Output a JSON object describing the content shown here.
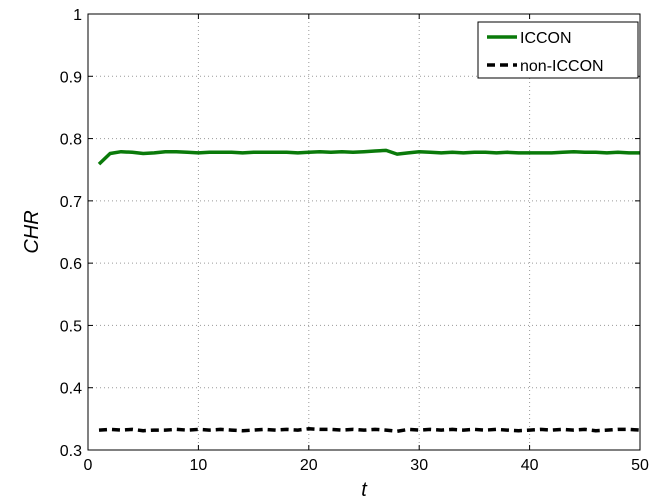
{
  "chart_data": {
    "type": "line",
    "title": "",
    "xlabel": "t",
    "ylabel": "CHR",
    "xlim": [
      0,
      50
    ],
    "ylim": [
      0.3,
      1
    ],
    "x_ticks": [
      0,
      10,
      20,
      30,
      40,
      50
    ],
    "x_tick_labels": [
      "0",
      "10",
      "20",
      "30",
      "40",
      "50"
    ],
    "y_ticks": [
      0.3,
      0.4,
      0.5,
      0.6,
      0.7,
      0.8,
      0.9,
      1
    ],
    "y_tick_labels": [
      "0.3",
      "0.4",
      "0.5",
      "0.6",
      "0.7",
      "0.8",
      "0.9",
      "1"
    ],
    "grid": true,
    "legend_position": "top-right",
    "x": [
      1,
      2,
      3,
      4,
      5,
      6,
      7,
      8,
      9,
      10,
      11,
      12,
      13,
      14,
      15,
      16,
      17,
      18,
      19,
      20,
      21,
      22,
      23,
      24,
      25,
      26,
      27,
      28,
      29,
      30,
      31,
      32,
      33,
      34,
      35,
      36,
      37,
      38,
      39,
      40,
      41,
      42,
      43,
      44,
      45,
      46,
      47,
      48,
      49,
      50
    ],
    "series": [
      {
        "name": "ICCON",
        "color": "#0a7a0a",
        "line_style": "solid",
        "values": [
          0.759,
          0.776,
          0.779,
          0.778,
          0.776,
          0.777,
          0.779,
          0.779,
          0.778,
          0.777,
          0.778,
          0.778,
          0.778,
          0.777,
          0.778,
          0.778,
          0.778,
          0.778,
          0.777,
          0.778,
          0.779,
          0.778,
          0.779,
          0.778,
          0.779,
          0.78,
          0.781,
          0.775,
          0.777,
          0.779,
          0.778,
          0.777,
          0.778,
          0.777,
          0.778,
          0.778,
          0.777,
          0.778,
          0.777,
          0.777,
          0.777,
          0.777,
          0.778,
          0.779,
          0.778,
          0.778,
          0.777,
          0.778,
          0.777,
          0.777
        ]
      },
      {
        "name": "non-ICCON",
        "color": "#000000",
        "line_style": "dashed",
        "values": [
          0.332,
          0.333,
          0.332,
          0.333,
          0.331,
          0.332,
          0.332,
          0.333,
          0.332,
          0.333,
          0.332,
          0.333,
          0.332,
          0.331,
          0.332,
          0.333,
          0.332,
          0.333,
          0.332,
          0.334,
          0.333,
          0.333,
          0.332,
          0.333,
          0.332,
          0.333,
          0.332,
          0.33,
          0.333,
          0.332,
          0.333,
          0.332,
          0.333,
          0.332,
          0.333,
          0.332,
          0.333,
          0.332,
          0.331,
          0.332,
          0.333,
          0.332,
          0.333,
          0.332,
          0.333,
          0.331,
          0.332,
          0.333,
          0.333,
          0.332
        ]
      }
    ]
  }
}
